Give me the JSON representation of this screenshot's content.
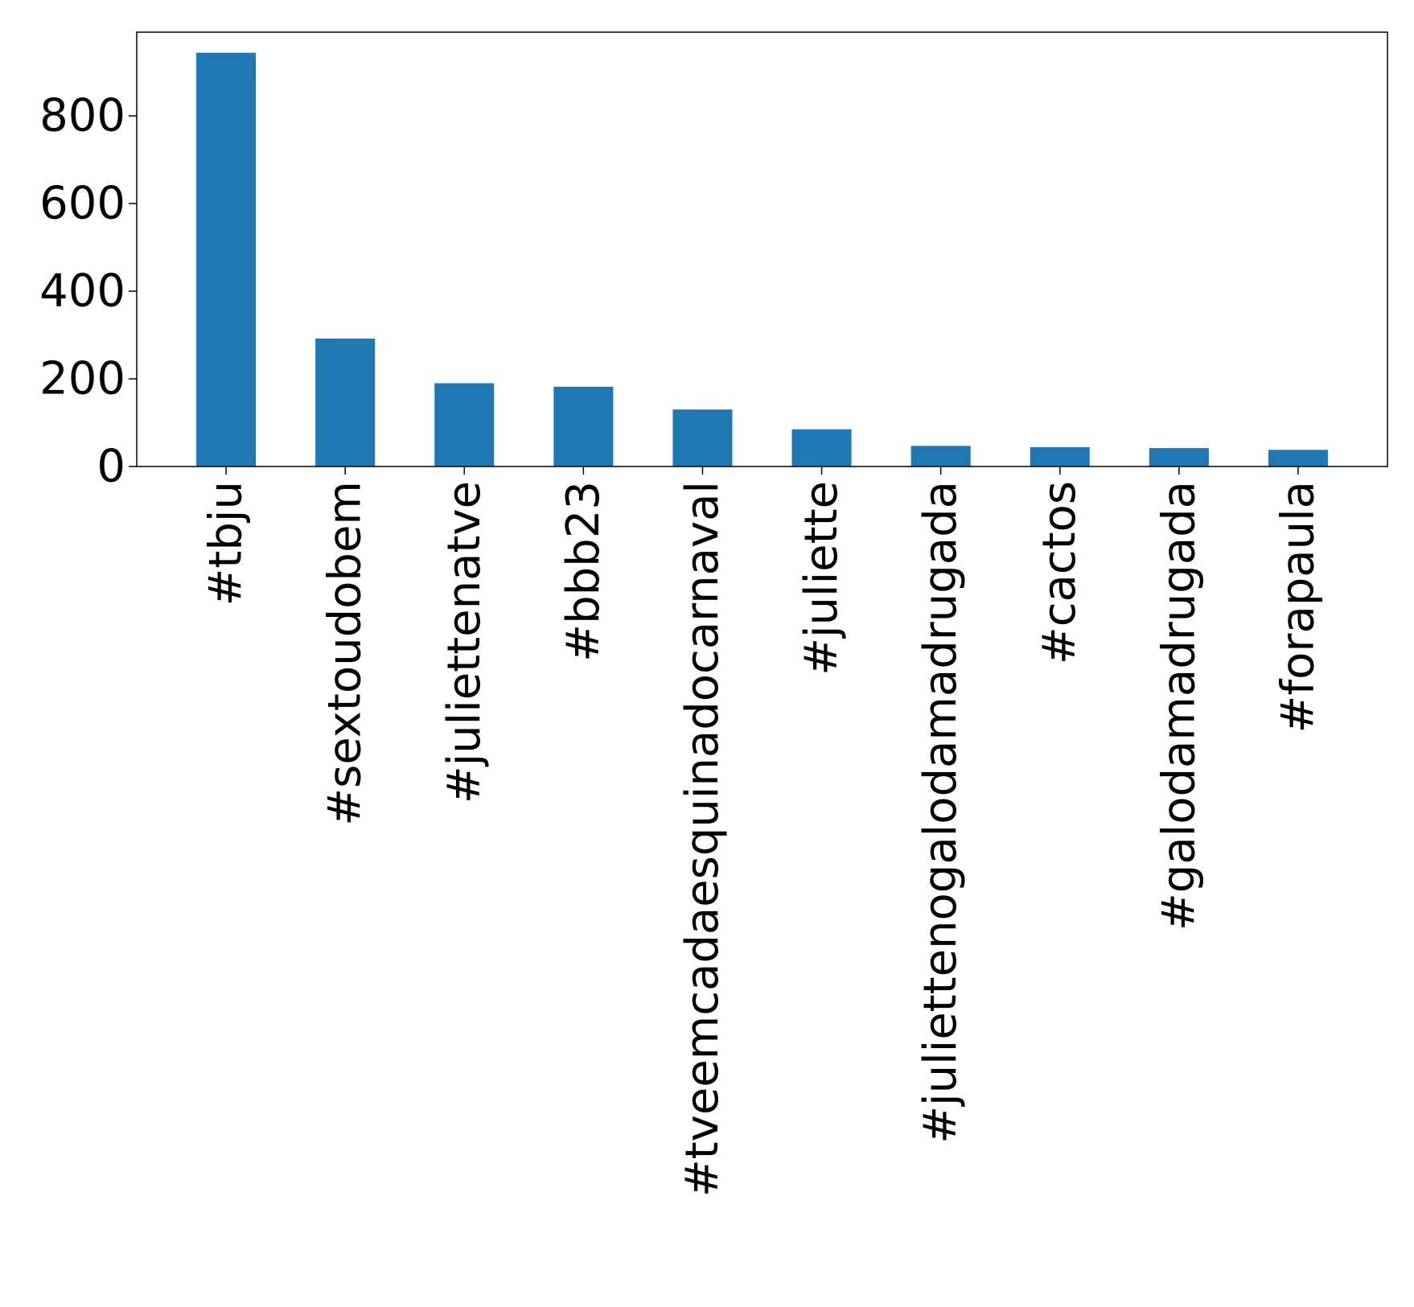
{
  "chart_data": {
    "type": "bar",
    "title": "",
    "xlabel": "",
    "ylabel": "",
    "categories": [
      "#tbju",
      "#sextoudobem",
      "#juliettenatve",
      "#bbb23",
      "#tveemcadaesquinadocarnaval",
      "#juliette",
      "#juliettenogalodamadrugada",
      "#cactos",
      "#galodamadrugada",
      "#forapaula"
    ],
    "values": [
      944,
      292,
      190,
      182,
      130,
      85,
      47,
      44,
      42,
      38
    ],
    "ylim": [
      0,
      991
    ],
    "yticks": [
      0,
      200,
      400,
      600,
      800
    ],
    "grid": false,
    "legend": "none",
    "bar_color": "#1f77b4"
  }
}
